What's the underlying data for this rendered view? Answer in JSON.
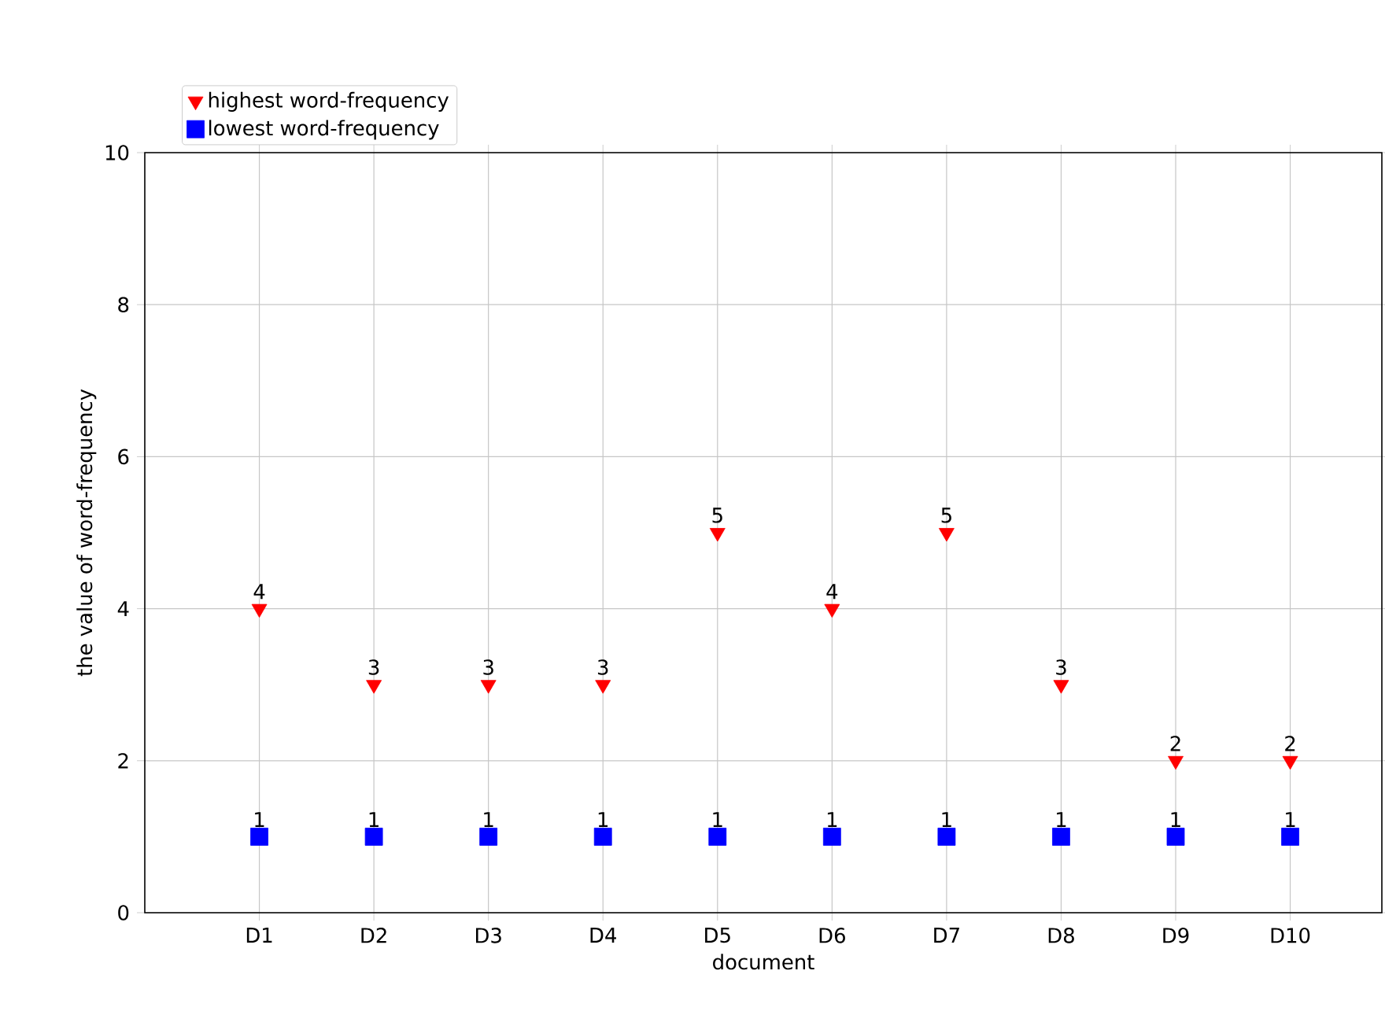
{
  "chart_data": {
    "type": "scatter",
    "xlabel": "document",
    "ylabel": "the value of word-frequency",
    "categories": [
      "D1",
      "D2",
      "D3",
      "D4",
      "D5",
      "D6",
      "D7",
      "D8",
      "D9",
      "D10"
    ],
    "series": [
      {
        "name": "highest word-frequency",
        "color": "#ff0000",
        "marker": "triangle",
        "values": [
          4,
          3,
          3,
          3,
          5,
          4,
          5,
          3,
          2,
          2
        ]
      },
      {
        "name": "lowest word-frequency",
        "color": "#0000ff",
        "marker": "square",
        "values": [
          1,
          1,
          1,
          1,
          1,
          1,
          1,
          1,
          1,
          1
        ]
      }
    ],
    "ylim": [
      0,
      10
    ],
    "yticks": [
      0,
      2,
      4,
      6,
      8,
      10
    ],
    "grid": true,
    "legend": "top left",
    "data_labels": true
  }
}
